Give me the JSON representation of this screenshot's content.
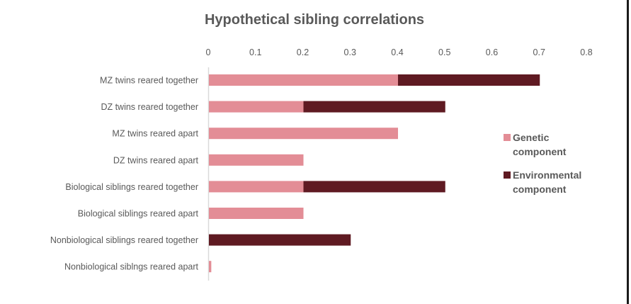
{
  "chart_data": {
    "type": "bar",
    "orientation": "horizontal",
    "stacked": true,
    "title": "Hypothetical sibling correlations",
    "xlabel": "",
    "ylabel": "",
    "xlim": [
      0,
      0.8
    ],
    "x_axis_position": "top",
    "x_ticks": [
      "0",
      "0.1",
      "0.2",
      "0.3",
      "0.4",
      "0.5",
      "0.6",
      "0.7",
      "0.8"
    ],
    "grid": false,
    "legend_position": "right",
    "categories": [
      "MZ twins reared together",
      "DZ twins reared together",
      "MZ twins reared apart",
      "DZ twins reared apart",
      "Biological siblings reared together",
      "Biological siblings reared apart",
      "Nonbiological siblings reared together",
      "Nonbiological siblngs reared apart"
    ],
    "series": [
      {
        "name": "Genetic component",
        "legend_lines": [
          "Genetic",
          "component"
        ],
        "color": "#e38d96",
        "values": [
          0.4,
          0.2,
          0.4,
          0.2,
          0.2,
          0.2,
          0,
          0.005
        ]
      },
      {
        "name": "Environmental component",
        "legend_lines": [
          "Environmental",
          "component"
        ],
        "color": "#5f1a22",
        "values": [
          0.3,
          0.3,
          0,
          0,
          0.3,
          0,
          0.3,
          0
        ]
      }
    ]
  }
}
